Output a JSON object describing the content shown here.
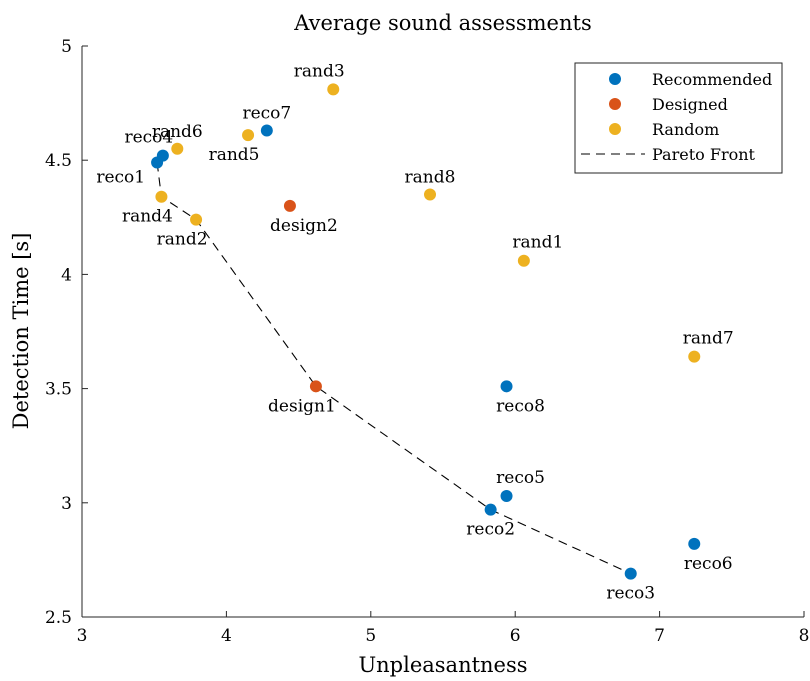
{
  "chart_data": {
    "type": "scatter",
    "title": "Average sound assessments",
    "xlabel": "Unpleasantness",
    "ylabel": "Detection Time [s]",
    "xlim": [
      3,
      8
    ],
    "ylim": [
      2.5,
      5
    ],
    "xticks": [
      3,
      4,
      5,
      6,
      7,
      8
    ],
    "yticks": [
      2.5,
      3,
      3.5,
      4,
      4.5,
      5
    ],
    "xtick_labels": [
      "3",
      "4",
      "5",
      "6",
      "7",
      "8"
    ],
    "ytick_labels": [
      "2.5",
      "3",
      "3.5",
      "4",
      "4.5",
      "5"
    ],
    "grid": false,
    "legend_position": "top-right",
    "series": [
      {
        "name": "Recommended",
        "color": "#0072BD",
        "points": [
          {
            "label": "reco1",
            "x": 3.52,
            "y": 4.49,
            "label_anchor": "west"
          },
          {
            "label": "reco2",
            "x": 5.83,
            "y": 2.97,
            "label_anchor": "south"
          },
          {
            "label": "reco3",
            "x": 6.8,
            "y": 2.69,
            "label_anchor": "south"
          },
          {
            "label": "reco4",
            "x": 3.56,
            "y": 4.52,
            "label_anchor": "northwest"
          },
          {
            "label": "reco5",
            "x": 5.94,
            "y": 3.03,
            "label_anchor": "northeast"
          },
          {
            "label": "reco6",
            "x": 7.24,
            "y": 2.82,
            "label_anchor": "southeast"
          },
          {
            "label": "reco7",
            "x": 4.28,
            "y": 4.63,
            "label_anchor": "north"
          },
          {
            "label": "reco8",
            "x": 5.94,
            "y": 3.51,
            "label_anchor": "southeast"
          }
        ]
      },
      {
        "name": "Designed",
        "color": "#D95319",
        "points": [
          {
            "label": "design1",
            "x": 4.62,
            "y": 3.51,
            "label_anchor": "southwest"
          },
          {
            "label": "design2",
            "x": 4.44,
            "y": 4.3,
            "label_anchor": "southeast"
          }
        ]
      },
      {
        "name": "Random",
        "color": "#EDB120",
        "points": [
          {
            "label": "rand1",
            "x": 6.06,
            "y": 4.06,
            "label_anchor": "northeast"
          },
          {
            "label": "rand2",
            "x": 3.79,
            "y": 4.24,
            "label_anchor": "southwest"
          },
          {
            "label": "rand3",
            "x": 4.74,
            "y": 4.81,
            "label_anchor": "northwest"
          },
          {
            "label": "rand4",
            "x": 3.55,
            "y": 4.34,
            "label_anchor": "southwest"
          },
          {
            "label": "rand5",
            "x": 4.15,
            "y": 4.61,
            "label_anchor": "southwest"
          },
          {
            "label": "rand6",
            "x": 3.66,
            "y": 4.55,
            "label_anchor": "north"
          },
          {
            "label": "rand7",
            "x": 7.24,
            "y": 3.64,
            "label_anchor": "northeast"
          },
          {
            "label": "rand8",
            "x": 5.41,
            "y": 4.35,
            "label_anchor": "north"
          }
        ]
      }
    ],
    "pareto_front": {
      "name": "Pareto Front",
      "style": "dashed",
      "color": "#000000",
      "points": [
        [
          3.52,
          4.49
        ],
        [
          3.55,
          4.34
        ],
        [
          3.79,
          4.24
        ],
        [
          4.62,
          3.51
        ],
        [
          5.83,
          2.97
        ],
        [
          6.8,
          2.69
        ]
      ]
    }
  }
}
